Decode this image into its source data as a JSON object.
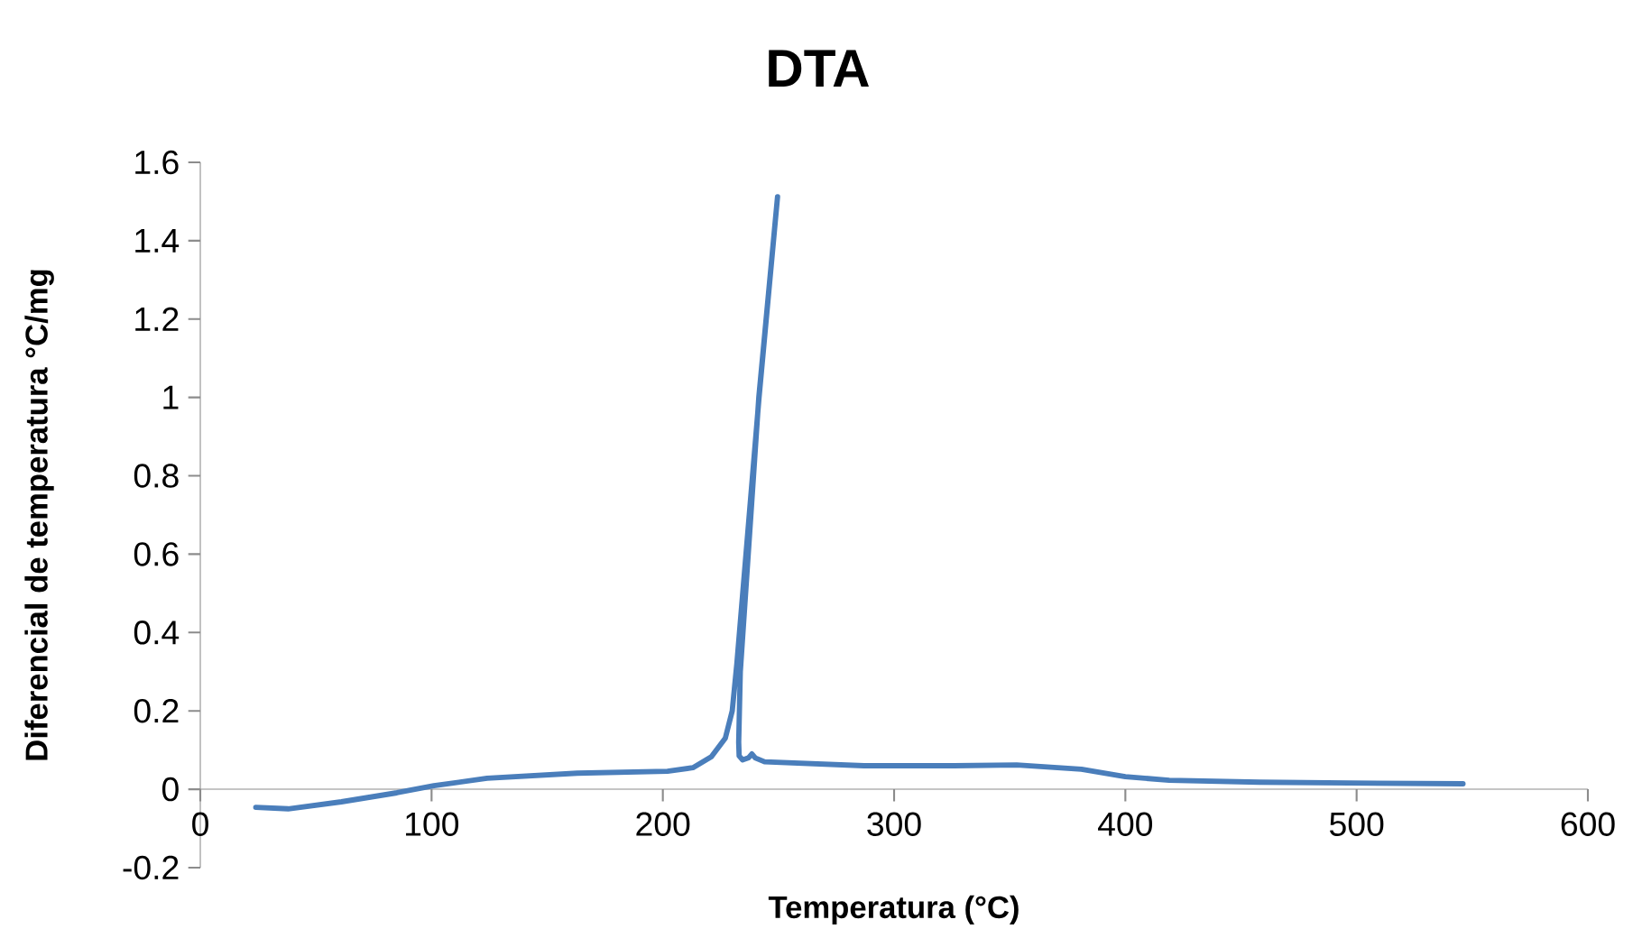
{
  "chart_data": {
    "type": "line",
    "title": "DTA",
    "xlabel": "Temperatura (°C)",
    "ylabel": "Diferencial de temperatura  °C/mg",
    "xlim": [
      0,
      600
    ],
    "ylim": [
      -0.2,
      1.6
    ],
    "xticks": [
      0,
      100,
      200,
      300,
      400,
      500,
      600
    ],
    "yticks": [
      -0.2,
      0,
      0.2,
      0.4,
      0.6,
      0.8,
      1,
      1.2,
      1.4,
      1.6
    ],
    "series": [
      {
        "color": "#4a7ebb",
        "x": [
          24,
          38,
          61,
          85,
          101,
          124,
          163,
          202,
          213,
          221,
          227,
          230,
          232,
          241.6,
          249.6,
          241.5,
          233.5,
          232.8,
          233,
          234.5,
          237,
          238.5,
          240,
          244,
          287,
          326,
          353,
          381,
          400,
          419,
          458,
          497,
          546
        ],
        "values": [
          -0.046,
          -0.05,
          -0.032,
          -0.009,
          0.009,
          0.028,
          0.041,
          0.046,
          0.055,
          0.083,
          0.13,
          0.2,
          0.32,
          1.0,
          1.512,
          1.0,
          0.3,
          0.12,
          0.085,
          0.075,
          0.08,
          0.09,
          0.08,
          0.07,
          0.06,
          0.06,
          0.062,
          0.051,
          0.032,
          0.023,
          0.018,
          0.016,
          0.014
        ]
      }
    ]
  }
}
